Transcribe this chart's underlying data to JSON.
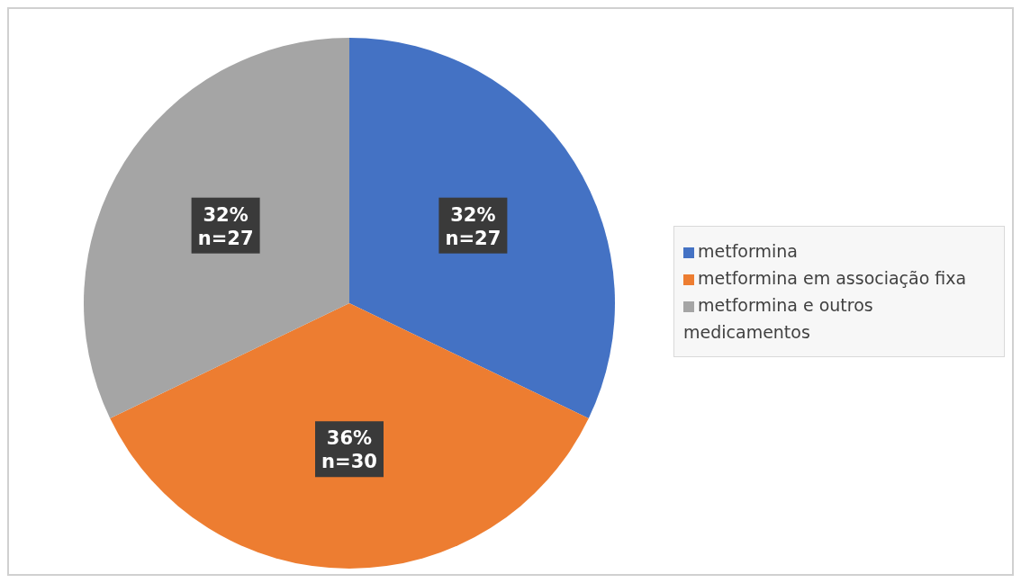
{
  "chart_data": {
    "type": "pie",
    "categories": [
      "metformina",
      "metformina em associação fixa",
      "metformina e outros medicamentos"
    ],
    "values": [
      27,
      30,
      27
    ],
    "colors": [
      "#4472c4",
      "#ed7d31",
      "#a5a5a5"
    ],
    "value_labels": [
      "32%\nn=27",
      "36%\nn=30",
      "32%\nn=27"
    ],
    "legend": "right"
  }
}
